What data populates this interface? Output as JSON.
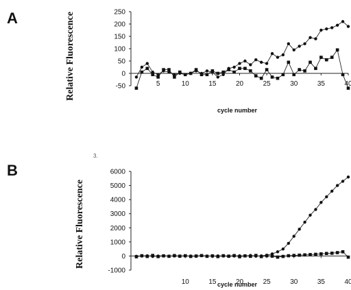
{
  "figure": {
    "panel_a_label": "A",
    "panel_b_label": "B",
    "stray_mark": "3."
  },
  "chart_data": [
    {
      "type": "line",
      "panel": "A",
      "title": "",
      "xlabel": "cycle number",
      "ylabel": "Relative Fluorescence",
      "xlim": [
        0,
        40
      ],
      "ylim": [
        -50,
        250
      ],
      "xticks": [
        5,
        10,
        15,
        20,
        25,
        30,
        35,
        40
      ],
      "yticks": [
        -50,
        0,
        50,
        100,
        150,
        200,
        250
      ],
      "grid": false,
      "x": [
        1,
        2,
        3,
        4,
        5,
        6,
        7,
        8,
        9,
        10,
        11,
        12,
        13,
        14,
        15,
        16,
        17,
        18,
        19,
        20,
        21,
        22,
        23,
        24,
        25,
        26,
        27,
        28,
        29,
        30,
        31,
        32,
        33,
        34,
        35,
        36,
        37,
        38,
        39,
        40
      ],
      "series": [
        {
          "marker": "circle",
          "values": [
            -15,
            25,
            40,
            5,
            -5,
            10,
            5,
            -5,
            0,
            -5,
            0,
            10,
            0,
            10,
            5,
            -15,
            -5,
            20,
            25,
            40,
            50,
            35,
            55,
            45,
            40,
            80,
            65,
            75,
            120,
            95,
            110,
            120,
            145,
            140,
            175,
            180,
            185,
            195,
            210,
            190
          ]
        },
        {
          "marker": "square",
          "values": [
            -60,
            5,
            20,
            -5,
            -15,
            15,
            15,
            -15,
            5,
            -5,
            0,
            15,
            -5,
            -5,
            10,
            0,
            5,
            15,
            5,
            20,
            20,
            10,
            -10,
            -20,
            15,
            -15,
            -20,
            -5,
            45,
            -5,
            15,
            10,
            45,
            20,
            65,
            55,
            65,
            95,
            -5,
            -60
          ]
        }
      ]
    },
    {
      "type": "line",
      "panel": "B",
      "title": "",
      "xlabel": "cycle number",
      "ylabel": "Relative Fluorescence",
      "xlim": [
        0,
        40
      ],
      "ylim": [
        -1000,
        6000
      ],
      "xticks": [
        10,
        15,
        20,
        25,
        30,
        35,
        40
      ],
      "yticks": [
        -1000,
        0,
        1000,
        2000,
        3000,
        4000,
        5000,
        6000
      ],
      "grid": false,
      "x": [
        1,
        2,
        3,
        4,
        5,
        6,
        7,
        8,
        9,
        10,
        11,
        12,
        13,
        14,
        15,
        16,
        17,
        18,
        19,
        20,
        21,
        22,
        23,
        24,
        25,
        26,
        27,
        28,
        29,
        30,
        31,
        32,
        33,
        34,
        35,
        36,
        37,
        38,
        39,
        40
      ],
      "series": [
        {
          "marker": "circle",
          "values": [
            -20,
            0,
            20,
            -30,
            0,
            20,
            -10,
            0,
            -20,
            10,
            0,
            -20,
            30,
            0,
            -10,
            10,
            0,
            -30,
            0,
            20,
            0,
            40,
            -10,
            10,
            60,
            150,
            300,
            500,
            900,
            1400,
            1900,
            2400,
            2900,
            3300,
            3800,
            4200,
            4600,
            5000,
            5300,
            5600
          ]
        },
        {
          "marker": "square",
          "values": [
            -50,
            20,
            -30,
            40,
            -40,
            10,
            -20,
            30,
            -10,
            20,
            -30,
            0,
            30,
            -20,
            10,
            -40,
            20,
            -10,
            30,
            -50,
            10,
            -20,
            40,
            -40,
            20,
            -10,
            -80,
            -30,
            20,
            40,
            60,
            80,
            100,
            120,
            150,
            180,
            200,
            240,
            300,
            -80
          ]
        }
      ]
    }
  ]
}
